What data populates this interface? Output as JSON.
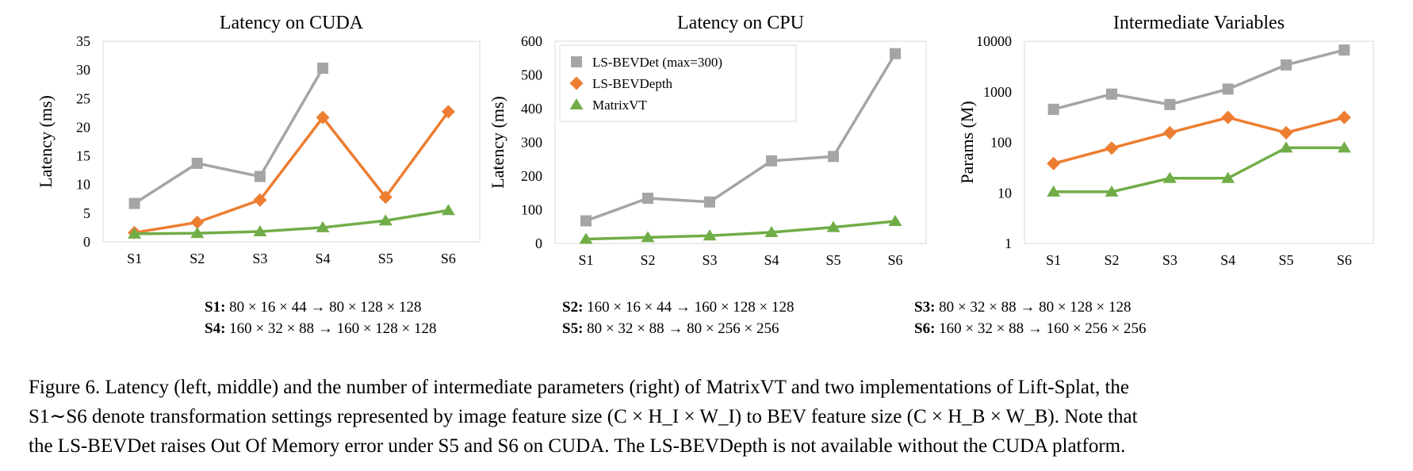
{
  "colors": {
    "ls_bevdet": "#a5a5a5",
    "ls_bevdepth": "#ed7d31",
    "matrixvt": "#70ad47"
  },
  "chart_data": [
    {
      "type": "line",
      "title": "Latency on CUDA",
      "xlabel": "",
      "ylabel": "Latency (ms)",
      "categories": [
        "S1",
        "S2",
        "S3",
        "S4",
        "S5",
        "S6"
      ],
      "ylim": [
        0,
        35
      ],
      "yticks": [
        0,
        5,
        10,
        15,
        20,
        25,
        30,
        35
      ],
      "yscale": "linear",
      "grid": false,
      "legend": false,
      "series": [
        {
          "name": "LS-BEVDet (max=300)",
          "marker": "square",
          "values": [
            6.7,
            13.7,
            11.4,
            30.3,
            null,
            null
          ]
        },
        {
          "name": "LS-BEVDepth",
          "marker": "diamond",
          "values": [
            1.6,
            3.4,
            7.3,
            21.7,
            7.8,
            22.7
          ]
        },
        {
          "name": "MatrixVT",
          "marker": "triangle",
          "values": [
            1.4,
            1.5,
            1.8,
            2.5,
            3.7,
            5.5
          ]
        }
      ]
    },
    {
      "type": "line",
      "title": "Latency on CPU",
      "xlabel": "",
      "ylabel": "Latency (ms)",
      "categories": [
        "S1",
        "S2",
        "S3",
        "S4",
        "S5",
        "S6"
      ],
      "ylim": [
        0,
        600
      ],
      "yticks": [
        0,
        100,
        200,
        300,
        400,
        500,
        600
      ],
      "yscale": "linear",
      "grid": false,
      "legend": true,
      "legend_position": "top-left",
      "series": [
        {
          "name": "LS-BEVDet (max=300)",
          "marker": "square",
          "values": [
            67,
            134,
            123,
            245,
            258,
            563
          ]
        },
        {
          "name": "LS-BEVDepth",
          "marker": "diamond",
          "values": [
            null,
            null,
            null,
            null,
            null,
            null
          ]
        },
        {
          "name": "MatrixVT",
          "marker": "triangle",
          "values": [
            13,
            18,
            23,
            33,
            48,
            66
          ]
        }
      ]
    },
    {
      "type": "line",
      "title": "Intermediate Variables",
      "xlabel": "",
      "ylabel": "Params (M)",
      "categories": [
        "S1",
        "S2",
        "S3",
        "S4",
        "S5",
        "S6"
      ],
      "ylim": [
        1,
        10000
      ],
      "yticks": [
        1,
        10,
        100,
        1000,
        10000
      ],
      "yscale": "log",
      "grid": false,
      "legend": false,
      "series": [
        {
          "name": "LS-BEVDet (max=300)",
          "marker": "square",
          "values": [
            450,
            900,
            560,
            1130,
            3400,
            6700
          ]
        },
        {
          "name": "LS-BEVDepth",
          "marker": "diamond",
          "values": [
            38,
            77,
            155,
            310,
            155,
            310
          ]
        },
        {
          "name": "MatrixVT",
          "marker": "triangle",
          "values": [
            10.5,
            10.5,
            19.5,
            19.5,
            78,
            78
          ]
        }
      ]
    }
  ],
  "settings": [
    {
      "label": "S1:",
      "text": "80 × 16 × 44 → 80 × 128 × 128"
    },
    {
      "label": "S2:",
      "text": "160 × 16 × 44 → 160 × 128 × 128"
    },
    {
      "label": "S3:",
      "text": "80 × 32 × 88 → 80 × 128 × 128"
    },
    {
      "label": "S4:",
      "text": "160 × 32 × 88 → 160 × 128 × 128"
    },
    {
      "label": "S5:",
      "text": "80 × 32 × 88 → 80 × 256 × 256"
    },
    {
      "label": "S6:",
      "text": "160 × 32 × 88 → 160 × 256 × 256"
    }
  ],
  "caption": {
    "line1": "Figure 6. Latency (left, middle) and the number of intermediate parameters (right) of MatrixVT and two implementations of Lift-Splat, the",
    "line2": "S1∼S6 denote transformation settings represented by image feature size (C × H_I × W_I) to BEV feature size (C × H_B × W_B). Note that",
    "line3": "the LS-BEVDet raises Out Of Memory error under S5 and S6 on CUDA. The LS-BEVDepth is not available without the CUDA platform."
  }
}
